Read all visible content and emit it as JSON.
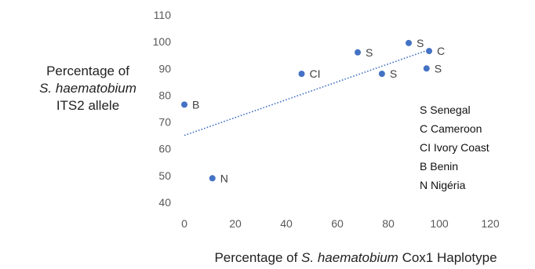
{
  "chart_data": {
    "type": "scatter",
    "xlabel": {
      "before": "Percentage of ",
      "italic": "S. haematobium",
      "after": " Cox1 Haplotype"
    },
    "ylabel": {
      "line1": "Percentage of",
      "line2_italic": "S. haematobium",
      "line3": "ITS2 allele"
    },
    "xlim": [
      0,
      120
    ],
    "ylim": [
      40,
      110
    ],
    "xticks": [
      0,
      20,
      40,
      60,
      80,
      100,
      120
    ],
    "yticks": [
      40,
      50,
      60,
      70,
      80,
      90,
      100,
      110
    ],
    "grid": false,
    "points": [
      {
        "x": 0,
        "y": 76.5,
        "label": "B"
      },
      {
        "x": 11,
        "y": 49,
        "label": "N"
      },
      {
        "x": 46,
        "y": 88,
        "label": "CI"
      },
      {
        "x": 68,
        "y": 96,
        "label": "S"
      },
      {
        "x": 77.5,
        "y": 88,
        "label": "S"
      },
      {
        "x": 88,
        "y": 99.5,
        "label": "S"
      },
      {
        "x": 96,
        "y": 96.5,
        "label": "C"
      },
      {
        "x": 95,
        "y": 90,
        "label": "S"
      }
    ],
    "trendline": {
      "type": "linear",
      "style": "dotted",
      "x_range": [
        0,
        96
      ],
      "y_start": 65,
      "y_end": 97
    },
    "marker_color": "#4472C4",
    "trendline_color": "#4472C4",
    "legend": {
      "placement": "right",
      "entries": [
        "S Senegal",
        "C Cameroon",
        "CI Ivory Coast",
        "B Benin",
        "N Nigéria"
      ]
    }
  }
}
